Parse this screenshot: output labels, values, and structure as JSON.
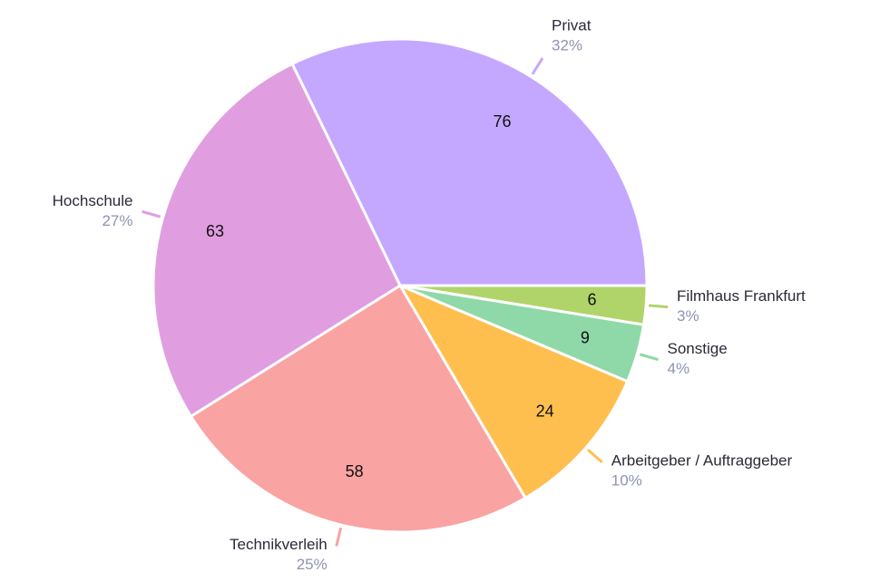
{
  "chart_data": {
    "type": "pie",
    "categories": [
      "Privat",
      "Filmhaus Frankfurt",
      "Sonstige",
      "Arbeitgeber / Auftraggeber",
      "Technikverleih",
      "Hochschule"
    ],
    "values": [
      76,
      6,
      9,
      24,
      58,
      63
    ],
    "percents": [
      32,
      3,
      4,
      10,
      25,
      27
    ],
    "percent_labels": [
      "32%",
      "3%",
      "4%",
      "10%",
      "25%",
      "27%"
    ],
    "colors": [
      "#c4a8ff",
      "#b0d46a",
      "#8fd9a8",
      "#ffbf4f",
      "#f9a3a3",
      "#e09ee0"
    ]
  }
}
